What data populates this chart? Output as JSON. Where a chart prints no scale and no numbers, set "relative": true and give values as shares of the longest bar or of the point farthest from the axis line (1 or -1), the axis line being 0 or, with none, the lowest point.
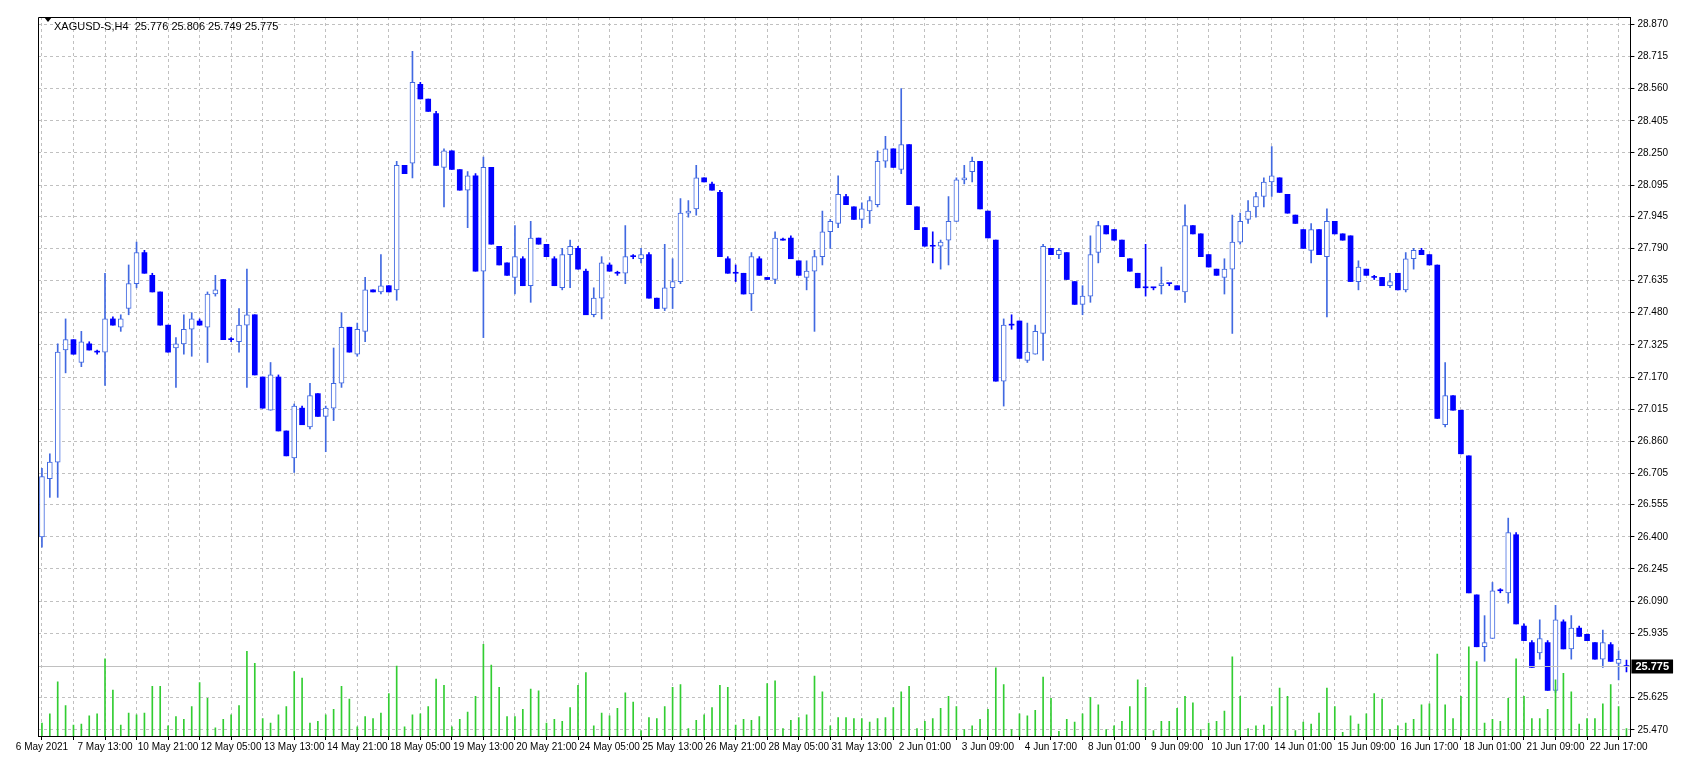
{
  "chart_data": [
    {
      "type": "candlestick",
      "title": "XAGUSD-S,H4  25.776 25.806 25.749 25.775",
      "grid": true,
      "colors": [
        "#4169e1",
        "#4169e1",
        "#4169e1",
        "#4169e1",
        "#0000ff",
        "#4169e1",
        "#0000ff",
        "#0000ff",
        "#4169e1",
        "#0000ff",
        "#4169e1",
        "#4169e1",
        "#4169e1",
        "#0000ff",
        "#0000ff",
        "#0000ff",
        "#0000ff",
        "#4169e1",
        "#4169e1",
        "#4169e1",
        "#0000ff",
        "#4169e1",
        "#4169e1",
        "#0000ff",
        "#0000ff",
        "#4169e1",
        "#4169e1",
        "#0000ff",
        "#0000ff",
        "#4169e1",
        "#0000ff",
        "#0000ff",
        "#4169e1",
        "#0000ff",
        "#4169e1",
        "#0000ff",
        "#4169e1",
        "#4169e1",
        "#4169e1",
        "#0000ff",
        "#4169e1",
        "#4169e1",
        "#0000ff",
        "#4169e1",
        "#0000ff",
        "#4169e1",
        "#0000ff",
        "#4169e1",
        "#0000ff",
        "#0000ff",
        "#0000ff",
        "#4169e1",
        "#0000ff",
        "#0000ff",
        "#4169e1",
        "#0000ff",
        "#4169e1",
        "#0000ff",
        "#0000ff",
        "#0000ff",
        "#4169e1",
        "#0000ff",
        "#4169e1",
        "#0000ff",
        "#0000ff",
        "#0000ff",
        "#4169e1",
        "#4169e1",
        "#0000ff",
        "#0000ff",
        "#4169e1",
        "#4169e1",
        "#0000ff",
        "#0000ff",
        "#4169e1",
        "#0000ff",
        "#4169e1",
        "#0000ff",
        "#0000ff",
        "#4169e1",
        "#4169e1",
        "#4169e1",
        "#4169e1",
        "#4169e1",
        "#0000ff",
        "#0000ff",
        "#0000ff",
        "#0000ff",
        "#0000ff",
        "#0000ff",
        "#4169e1",
        "#0000ff",
        "#0000ff",
        "#4169e1",
        "#0000ff",
        "#0000ff",
        "#0000ff",
        "#4169e1",
        "#4169e1",
        "#4169e1",
        "#4169e1",
        "#4169e1",
        "#0000ff",
        "#0000ff",
        "#4169e1",
        "#4169e1",
        "#4169e1",
        "#4169e1",
        "#0000ff",
        "#4169e1",
        "#0000ff",
        "#0000ff",
        "#0000ff",
        "#0000ff",
        "#4169e1",
        "#4169e1",
        "#4169e1",
        "#4169e1",
        "#4169e1",
        "#0000ff",
        "#0000ff",
        "#0000ff",
        "#4169e1",
        "#0000ff",
        "#0000ff",
        "#4169e1",
        "#4169e1",
        "#4169e1",
        "#0000ff",
        "#4169e1",
        "#0000ff",
        "#0000ff",
        "#4169e1",
        "#4169e1",
        "#4169e1",
        "#0000ff",
        "#0000ff",
        "#0000ff",
        "#0000ff",
        "#0000ff",
        "#0000ff",
        "#0000ff",
        "#4169e1",
        "#0000ff",
        "#0000ff",
        "#4169e1",
        "#0000ff",
        "#0000ff",
        "#0000ff",
        "#0000ff",
        "#4169e1",
        "#4169e1",
        "#4169e1",
        "#4169e1",
        "#4169e1",
        "#4169e1",
        "#4169e1",
        "#0000ff",
        "#0000ff",
        "#0000ff",
        "#0000ff",
        "#4169e1",
        "#0000ff",
        "#4169e1",
        "#0000ff",
        "#0000ff",
        "#0000ff",
        "#4169e1",
        "#0000ff",
        "#0000ff",
        "#0000ff",
        "#4169e1",
        "#0000ff",
        "#4169e1",
        "#4169e1",
        "#0000ff",
        "#0000ff",
        "#0000ff",
        "#4169e1",
        "#0000ff",
        "#0000ff",
        "#0000ff",
        "#0000ff",
        "#4169e1",
        "#4169e1",
        "#0000ff",
        "#4169e1",
        "#0000ff",
        "#0000ff",
        "#0000ff",
        "#4169e1",
        "#0000ff",
        "#4169e1",
        "#0000ff",
        "#4169e1",
        "#0000ff",
        "#0000ff",
        "#0000ff",
        "#4169e1",
        "#0000ff",
        "#4169e1",
        "#0000ff"
      ],
      "categories": [
        "6 May 2021",
        null,
        null,
        null,
        null,
        null,
        null,
        null,
        "7 May 13:00",
        null,
        null,
        null,
        null,
        null,
        null,
        null,
        "10 May 21:00",
        null,
        null,
        null,
        null,
        null,
        null,
        null,
        "12 May 05:00",
        null,
        null,
        null,
        null,
        null,
        null,
        null,
        "13 May 13:00",
        null,
        null,
        null,
        null,
        null,
        null,
        null,
        "14 May 21:00",
        null,
        null,
        null,
        null,
        null,
        null,
        null,
        "18 May 05:00",
        null,
        null,
        null,
        null,
        null,
        null,
        null,
        "19 May 13:00",
        null,
        null,
        null,
        null,
        null,
        null,
        null,
        "20 May 21:00",
        null,
        null,
        null,
        null,
        null,
        null,
        null,
        "24 May 05:00",
        null,
        null,
        null,
        null,
        null,
        null,
        null,
        "25 May 13:00",
        null,
        null,
        null,
        null,
        null,
        null,
        null,
        "26 May 21:00",
        null,
        null,
        null,
        null,
        null,
        null,
        null,
        "28 May 05:00",
        null,
        null,
        null,
        null,
        null,
        null,
        null,
        "31 May 13:00",
        null,
        null,
        null,
        null,
        null,
        null,
        null,
        "2 Jun 01:00",
        null,
        null,
        null,
        null,
        null,
        null,
        null,
        "3 Jun 09:00",
        null,
        null,
        null,
        null,
        null,
        null,
        null,
        "4 Jun 17:00",
        null,
        null,
        null,
        null,
        null,
        null,
        null,
        "8 Jun 01:00",
        null,
        null,
        null,
        null,
        null,
        null,
        null,
        "9 Jun 09:00",
        null,
        null,
        null,
        null,
        null,
        null,
        null,
        "10 Jun 17:00",
        null,
        null,
        null,
        null,
        null,
        null,
        null,
        "14 Jun 01:00",
        null,
        null,
        null,
        null,
        null,
        null,
        null,
        "15 Jun 09:00",
        null,
        null,
        null,
        null,
        null,
        null,
        null,
        "16 Jun 17:00",
        null,
        null,
        null,
        null,
        null,
        null,
        null,
        "18 Jun 01:00",
        null,
        null,
        null,
        null,
        null,
        null,
        null,
        "21 Jun 09:00",
        null,
        null,
        null,
        null,
        null,
        null,
        null,
        "22 Jun 17:00",
        null
      ],
      "ohlc": [
        [
          26.4,
          26.73,
          26.35,
          26.69
        ],
        [
          26.68,
          26.8,
          26.59,
          26.76
        ],
        [
          26.76,
          27.33,
          26.59,
          27.29
        ],
        [
          27.3,
          27.45,
          27.19,
          27.35
        ],
        [
          27.35,
          27.35,
          27.28,
          27.28
        ],
        [
          27.24,
          27.39,
          27.22,
          27.34
        ],
        [
          27.33,
          27.34,
          27.3,
          27.3
        ],
        [
          27.29,
          27.3,
          27.28,
          27.29
        ],
        [
          27.29,
          27.67,
          27.13,
          27.45
        ],
        [
          27.45,
          27.46,
          27.42,
          27.42
        ],
        [
          27.41,
          27.47,
          27.39,
          27.45
        ],
        [
          27.5,
          27.71,
          27.47,
          27.62
        ],
        [
          27.62,
          27.82,
          27.6,
          27.77
        ],
        [
          27.77,
          27.78,
          27.67,
          27.67
        ],
        [
          27.66,
          27.67,
          27.58,
          27.58
        ],
        [
          27.58,
          27.58,
          27.42,
          27.42
        ],
        [
          27.42,
          27.42,
          27.29,
          27.29
        ],
        [
          27.31,
          27.36,
          27.12,
          27.33
        ],
        [
          27.33,
          27.47,
          27.28,
          27.4
        ],
        [
          27.4,
          27.48,
          27.27,
          27.45
        ],
        [
          27.44,
          27.45,
          27.42,
          27.42
        ],
        [
          27.41,
          27.58,
          27.24,
          27.57
        ],
        [
          27.57,
          27.66,
          27.56,
          27.59
        ],
        [
          27.64,
          27.64,
          27.35,
          27.35
        ],
        [
          27.35,
          27.36,
          27.34,
          27.35
        ],
        [
          27.34,
          27.5,
          27.29,
          27.42
        ],
        [
          27.42,
          27.69,
          27.12,
          27.47
        ],
        [
          27.47,
          27.47,
          27.18,
          27.18
        ],
        [
          27.17,
          27.17,
          27.02,
          27.02
        ],
        [
          27.01,
          27.24,
          27.01,
          27.18
        ],
        [
          27.17,
          27.18,
          26.91,
          26.91
        ],
        [
          26.91,
          26.91,
          26.79,
          26.79
        ],
        [
          26.78,
          27.04,
          26.71,
          27.03
        ],
        [
          27.02,
          27.03,
          26.94,
          26.94
        ],
        [
          26.93,
          27.14,
          26.92,
          27.08
        ],
        [
          27.09,
          27.09,
          26.98,
          26.98
        ],
        [
          26.98,
          27.03,
          26.81,
          27.02
        ],
        [
          27.02,
          27.31,
          26.96,
          27.14
        ],
        [
          27.14,
          27.48,
          27.12,
          27.41
        ],
        [
          27.41,
          27.41,
          27.29,
          27.29
        ],
        [
          27.28,
          27.43,
          27.27,
          27.4
        ],
        [
          27.39,
          27.65,
          27.34,
          27.59
        ],
        [
          27.59,
          27.59,
          27.58,
          27.58
        ],
        [
          27.58,
          27.76,
          27.57,
          27.61
        ],
        [
          27.61,
          27.61,
          27.58,
          27.58
        ],
        [
          27.59,
          28.21,
          27.54,
          28.19
        ],
        [
          28.19,
          28.19,
          28.15,
          28.15
        ],
        [
          28.2,
          28.74,
          28.13,
          28.59
        ],
        [
          28.58,
          28.59,
          28.51,
          28.51
        ],
        [
          28.51,
          28.51,
          28.45,
          28.45
        ],
        [
          28.44,
          28.45,
          28.19,
          28.19
        ],
        [
          28.18,
          28.27,
          27.99,
          28.26
        ],
        [
          28.26,
          28.26,
          28.17,
          28.17
        ],
        [
          28.17,
          28.17,
          28.07,
          28.07
        ],
        [
          28.07,
          28.16,
          27.89,
          28.14
        ],
        [
          28.14,
          28.15,
          27.68,
          27.68
        ],
        [
          27.68,
          28.23,
          27.36,
          28.18
        ],
        [
          28.18,
          28.18,
          27.81,
          27.81
        ],
        [
          27.8,
          27.8,
          27.71,
          27.71
        ],
        [
          27.72,
          27.72,
          27.66,
          27.66
        ],
        [
          27.65,
          27.9,
          27.57,
          27.75
        ],
        [
          27.74,
          27.75,
          27.61,
          27.61
        ],
        [
          27.61,
          27.92,
          27.53,
          27.84
        ],
        [
          27.84,
          27.84,
          27.81,
          27.81
        ],
        [
          27.81,
          27.81,
          27.75,
          27.75
        ],
        [
          27.74,
          27.75,
          27.61,
          27.61
        ],
        [
          27.6,
          27.79,
          27.59,
          27.76
        ],
        [
          27.76,
          27.83,
          27.6,
          27.8
        ],
        [
          27.79,
          27.8,
          27.69,
          27.69
        ],
        [
          27.68,
          27.69,
          27.47,
          27.47
        ],
        [
          27.47,
          27.6,
          27.46,
          27.55
        ],
        [
          27.55,
          27.75,
          27.45,
          27.72
        ],
        [
          27.71,
          27.72,
          27.68,
          27.68
        ],
        [
          27.67,
          27.68,
          27.66,
          27.67
        ],
        [
          27.67,
          27.9,
          27.62,
          27.75
        ],
        [
          27.75,
          27.76,
          27.74,
          27.75
        ],
        [
          27.74,
          27.79,
          27.72,
          27.76
        ],
        [
          27.76,
          27.77,
          27.55,
          27.55
        ],
        [
          27.55,
          27.55,
          27.5,
          27.5
        ],
        [
          27.5,
          27.81,
          27.49,
          27.6
        ],
        [
          27.6,
          27.74,
          27.5,
          27.63
        ],
        [
          27.63,
          28.03,
          27.62,
          27.96
        ],
        [
          27.96,
          28.02,
          27.94,
          27.97
        ],
        [
          27.98,
          28.19,
          27.95,
          28.13
        ],
        [
          28.13,
          28.13,
          28.11,
          28.11
        ],
        [
          28.1,
          28.11,
          28.07,
          28.07
        ],
        [
          28.06,
          28.07,
          27.75,
          27.75
        ],
        [
          27.74,
          27.75,
          27.67,
          27.67
        ],
        [
          27.67,
          27.71,
          27.63,
          27.67
        ],
        [
          27.67,
          27.67,
          27.57,
          27.57
        ],
        [
          27.57,
          27.77,
          27.49,
          27.75
        ],
        [
          27.74,
          27.75,
          27.66,
          27.66
        ],
        [
          27.65,
          27.65,
          27.64,
          27.64
        ],
        [
          27.64,
          27.87,
          27.62,
          27.84
        ],
        [
          27.83,
          27.84,
          27.83,
          27.83
        ],
        [
          27.84,
          27.85,
          27.74,
          27.74
        ],
        [
          27.73,
          27.73,
          27.66,
          27.66
        ],
        [
          27.65,
          27.73,
          27.59,
          27.68
        ],
        [
          27.68,
          27.78,
          27.39,
          27.75
        ],
        [
          27.75,
          27.97,
          27.71,
          27.87
        ],
        [
          27.87,
          27.93,
          27.79,
          27.92
        ],
        [
          27.91,
          28.14,
          27.89,
          28.05
        ],
        [
          28.04,
          28.05,
          28.0,
          28.0
        ],
        [
          27.99,
          27.99,
          27.93,
          27.93
        ],
        [
          27.93,
          28.01,
          27.89,
          27.98
        ],
        [
          27.97,
          28.04,
          27.91,
          28.02
        ],
        [
          28.0,
          28.26,
          27.99,
          28.21
        ],
        [
          28.21,
          28.33,
          28.18,
          28.27
        ],
        [
          28.27,
          28.27,
          28.18,
          28.18
        ],
        [
          28.17,
          28.56,
          28.15,
          28.29
        ],
        [
          28.29,
          28.29,
          28.0,
          28.0
        ],
        [
          27.99,
          27.99,
          27.88,
          27.88
        ],
        [
          27.89,
          27.89,
          27.8,
          27.8
        ],
        [
          27.8,
          27.87,
          27.72,
          27.8
        ],
        [
          27.8,
          27.83,
          27.69,
          27.82
        ],
        [
          27.83,
          28.04,
          27.71,
          27.92
        ],
        [
          27.92,
          28.13,
          27.92,
          28.12
        ],
        [
          28.12,
          28.19,
          28.1,
          28.13
        ],
        [
          28.16,
          28.23,
          28.11,
          28.21
        ],
        [
          28.21,
          28.21,
          27.98,
          27.98
        ],
        [
          27.97,
          27.97,
          27.84,
          27.84
        ],
        [
          27.83,
          27.83,
          27.15,
          27.15
        ],
        [
          27.15,
          27.45,
          27.03,
          27.42
        ],
        [
          27.42,
          27.47,
          27.4,
          27.42
        ],
        [
          27.44,
          27.44,
          27.26,
          27.26
        ],
        [
          27.25,
          27.43,
          27.24,
          27.29
        ],
        [
          27.28,
          27.42,
          27.28,
          27.39
        ],
        [
          27.38,
          27.81,
          27.25,
          27.8
        ],
        [
          27.79,
          27.79,
          27.76,
          27.76
        ],
        [
          27.76,
          27.79,
          27.74,
          27.78
        ],
        [
          27.77,
          27.77,
          27.64,
          27.64
        ],
        [
          27.63,
          27.63,
          27.52,
          27.52
        ],
        [
          27.52,
          27.61,
          27.47,
          27.56
        ],
        [
          27.56,
          27.85,
          27.53,
          27.76
        ],
        [
          27.77,
          27.92,
          27.72,
          27.9
        ],
        [
          27.9,
          27.9,
          27.86,
          27.86
        ],
        [
          27.88,
          27.88,
          27.83,
          27.83
        ],
        [
          27.83,
          27.83,
          27.75,
          27.75
        ],
        [
          27.74,
          27.74,
          27.68,
          27.68
        ],
        [
          27.67,
          27.67,
          27.6,
          27.6
        ],
        [
          27.6,
          27.81,
          27.56,
          27.6
        ],
        [
          27.6,
          27.6,
          27.59,
          27.6
        ],
        [
          27.61,
          27.7,
          27.57,
          27.62
        ],
        [
          27.62,
          27.62,
          27.61,
          27.62
        ],
        [
          27.61,
          27.61,
          27.59,
          27.59
        ],
        [
          27.58,
          28.0,
          27.53,
          27.9
        ],
        [
          27.9,
          27.9,
          27.86,
          27.86
        ],
        [
          27.86,
          27.86,
          27.75,
          27.75
        ],
        [
          27.76,
          27.76,
          27.7,
          27.7
        ],
        [
          27.69,
          27.69,
          27.66,
          27.66
        ],
        [
          27.65,
          27.74,
          27.57,
          27.69
        ],
        [
          27.69,
          27.95,
          27.38,
          27.82
        ],
        [
          27.82,
          27.96,
          27.81,
          27.92
        ],
        [
          27.93,
          28.02,
          27.91,
          27.97
        ],
        [
          27.99,
          28.06,
          27.94,
          28.04
        ],
        [
          28.04,
          28.13,
          27.99,
          28.11
        ],
        [
          28.11,
          28.28,
          28.04,
          28.14
        ],
        [
          28.13,
          28.13,
          28.06,
          28.06
        ],
        [
          28.05,
          28.05,
          27.96,
          27.96
        ],
        [
          27.95,
          27.95,
          27.91,
          27.91
        ],
        [
          27.88,
          27.88,
          27.79,
          27.79
        ],
        [
          27.78,
          27.91,
          27.72,
          27.88
        ],
        [
          27.88,
          27.88,
          27.76,
          27.76
        ],
        [
          27.75,
          27.98,
          27.46,
          27.92
        ],
        [
          27.92,
          27.92,
          27.86,
          27.86
        ],
        [
          27.86,
          27.86,
          27.83,
          27.83
        ],
        [
          27.85,
          27.85,
          27.63,
          27.63
        ],
        [
          27.63,
          27.73,
          27.59,
          27.7
        ],
        [
          27.69,
          27.69,
          27.66,
          27.66
        ],
        [
          27.65,
          27.66,
          27.64,
          27.65
        ],
        [
          27.65,
          27.65,
          27.61,
          27.61
        ],
        [
          27.61,
          27.67,
          27.6,
          27.63
        ],
        [
          27.67,
          27.67,
          27.59,
          27.59
        ],
        [
          27.59,
          27.77,
          27.58,
          27.74
        ],
        [
          27.74,
          27.79,
          27.69,
          27.78
        ],
        [
          27.78,
          27.79,
          27.76,
          27.76
        ],
        [
          27.76,
          27.76,
          27.71,
          27.71
        ],
        [
          27.71,
          27.71,
          26.97,
          26.97
        ],
        [
          26.94,
          27.24,
          26.93,
          27.08
        ],
        [
          27.08,
          27.08,
          27.01,
          27.01
        ],
        [
          27.01,
          27.01,
          26.8,
          26.8
        ],
        [
          26.79,
          26.79,
          26.13,
          26.13
        ],
        [
          26.12,
          26.12,
          25.87,
          25.87
        ],
        [
          25.87,
          26.02,
          25.8,
          25.89
        ],
        [
          25.91,
          26.18,
          25.91,
          26.14
        ],
        [
          26.14,
          26.15,
          26.13,
          26.14
        ],
        [
          26.13,
          26.49,
          26.08,
          26.42
        ],
        [
          26.41,
          26.42,
          25.98,
          25.98
        ],
        [
          25.97,
          25.98,
          25.9,
          25.9
        ],
        [
          25.89,
          25.9,
          25.77,
          25.77
        ],
        [
          25.84,
          26.0,
          25.81,
          25.91
        ],
        [
          25.89,
          25.9,
          25.66,
          25.66
        ],
        [
          25.66,
          26.07,
          25.65,
          26.0
        ],
        [
          25.99,
          26.0,
          25.86,
          25.86
        ],
        [
          25.86,
          26.02,
          25.81,
          25.96
        ],
        [
          25.96,
          25.97,
          25.92,
          25.92
        ],
        [
          25.93,
          25.93,
          25.9,
          25.9
        ],
        [
          25.89,
          25.89,
          25.81,
          25.81
        ],
        [
          25.81,
          25.95,
          25.77,
          25.89
        ],
        [
          25.88,
          25.89,
          25.8,
          25.8
        ],
        [
          25.79,
          25.85,
          25.71,
          25.81
        ],
        [
          25.776,
          25.806,
          25.749,
          25.775
        ]
      ],
      "ylim": [
        25.44,
        28.905
      ],
      "yticks": [
        {
          "value": 28.87,
          "label": "28.870"
        },
        {
          "value": 28.715,
          "label": "28.715"
        },
        {
          "value": 28.56,
          "label": "28.560"
        },
        {
          "value": 28.405,
          "label": "28.405"
        },
        {
          "value": 28.25,
          "label": "28.250"
        },
        {
          "value": 28.095,
          "label": "28.095"
        },
        {
          "value": 27.945,
          "label": "27.945"
        },
        {
          "value": 27.79,
          "label": "27.790"
        },
        {
          "value": 27.635,
          "label": "27.635"
        },
        {
          "value": 27.48,
          "label": "27.480"
        },
        {
          "value": 27.325,
          "label": "27.325"
        },
        {
          "value": 27.17,
          "label": "27.170"
        },
        {
          "value": 27.015,
          "label": "27.015"
        },
        {
          "value": 26.86,
          "label": "26.860"
        },
        {
          "value": 26.705,
          "label": "26.705"
        },
        {
          "value": 26.555,
          "label": "26.555"
        },
        {
          "value": 26.4,
          "label": "26.400"
        },
        {
          "value": 26.245,
          "label": "26.245"
        },
        {
          "value": 26.09,
          "label": "26.090"
        },
        {
          "value": 25.935,
          "label": "25.935"
        },
        {
          "value": 25.625,
          "label": "25.625"
        },
        {
          "value": 25.47,
          "label": "25.470"
        }
      ],
      "ref_lines": [
        {
          "axis": "y",
          "value": 25.775,
          "label": "25.775",
          "color": "#c0c0c0"
        }
      ]
    },
    {
      "type": "bar",
      "relative": true,
      "tick_labels": false,
      "color": "#32cd32",
      "categories": [
        null,
        null,
        null,
        null,
        null,
        null,
        null,
        null,
        null,
        null,
        null,
        null,
        null,
        null,
        null,
        null,
        null,
        null,
        null,
        null,
        null,
        null,
        null,
        null,
        null,
        null,
        null,
        null,
        null,
        null,
        null,
        null,
        null,
        null,
        null,
        null,
        null,
        null,
        null,
        null,
        null,
        null,
        null,
        null,
        null,
        null,
        null,
        null,
        null,
        null,
        null,
        null,
        null,
        null,
        null,
        null,
        null,
        null,
        null,
        null,
        null,
        null,
        null,
        null,
        null,
        null,
        null,
        null,
        null,
        null,
        null,
        null,
        null,
        null,
        null,
        null,
        null,
        null,
        null,
        null,
        null,
        null,
        null,
        null,
        null,
        null,
        null,
        null,
        null,
        null,
        null,
        null,
        null,
        null,
        null,
        null,
        null,
        null,
        null,
        null,
        null,
        null,
        null,
        null,
        null,
        null,
        null,
        null,
        null,
        null,
        null,
        null,
        null,
        null,
        null,
        null,
        null,
        null,
        null,
        null,
        null,
        null,
        null,
        null,
        null,
        null,
        null,
        null,
        null,
        null,
        null,
        null,
        null,
        null,
        null,
        null,
        null,
        null,
        null,
        null,
        null,
        null,
        null,
        null,
        null,
        null,
        null,
        null,
        null,
        null,
        null,
        null,
        null,
        null,
        null,
        null,
        null,
        null,
        null,
        null,
        null,
        null,
        null,
        null,
        null,
        null,
        null,
        null,
        null,
        null,
        null,
        null,
        null,
        null,
        null,
        null,
        null,
        null,
        null,
        null,
        null,
        null,
        null,
        null,
        null,
        null,
        null,
        null,
        null,
        null,
        null,
        null,
        null,
        null,
        null,
        null,
        null,
        null,
        null,
        null,
        null,
        null
      ],
      "values": [
        0.14,
        0.24,
        0.59,
        0.33,
        0.12,
        0.13,
        0.22,
        0.24,
        0.84,
        0.5,
        0.12,
        0.25,
        0.23,
        0.25,
        0.54,
        0.54,
        0.11,
        0.21,
        0.18,
        0.32,
        0.58,
        0.41,
        0.09,
        0.18,
        0.23,
        0.33,
        0.92,
        0.79,
        0.19,
        0.14,
        0.23,
        0.32,
        0.7,
        0.63,
        0.14,
        0.16,
        0.23,
        0.29,
        0.54,
        0.4,
        0.1,
        0.21,
        0.19,
        0.25,
        0.46,
        0.76,
        0.1,
        0.23,
        0.24,
        0.32,
        0.62,
        0.55,
        0.1,
        0.18,
        0.26,
        0.43,
        1,
        0.77,
        0.53,
        0.21,
        0.21,
        0.29,
        0.51,
        0.49,
        0.14,
        0.18,
        0.16,
        0.31,
        0.55,
        0.69,
        0.11,
        0.25,
        0.22,
        0.3,
        0.47,
        0.37,
        0.06,
        0.2,
        0.19,
        0.32,
        0.53,
        0.56,
        0.08,
        0.17,
        0.23,
        0.31,
        0.55,
        0.53,
        0.12,
        0.18,
        0.17,
        0.21,
        0.57,
        0.6,
        0.08,
        0.17,
        0.2,
        0.23,
        0.65,
        0.48,
        0.11,
        0.2,
        0.2,
        0.19,
        0.19,
        0.15,
        0.19,
        0.2,
        0.31,
        0.48,
        0.54,
        0.08,
        0.16,
        0.19,
        0.3,
        0.43,
        0.32,
        0.07,
        0.11,
        0.18,
        0.29,
        0.74,
        0.56,
        0.07,
        0.24,
        0.22,
        0.28,
        0.64,
        0.41,
        0.05,
        0.18,
        0.15,
        0.24,
        0.42,
        0.34,
        0.07,
        0.11,
        0.16,
        0.32,
        0.61,
        0.53,
        0.06,
        0.16,
        0.16,
        0.3,
        0.43,
        0.36,
        0.07,
        0.14,
        0.16,
        0.27,
        0.86,
        0.43,
        0.08,
        0.11,
        0.12,
        0.32,
        0.52,
        0.43,
        0.06,
        0.15,
        0.13,
        0.25,
        0.52,
        0.32,
        0.04,
        0.22,
        0.13,
        0.24,
        0.46,
        0.4,
        0.07,
        0.11,
        0.14,
        0.18,
        0.34,
        0.35,
        0.89,
        0.34,
        0.19,
        0.43,
        0.97,
        0.81,
        0.14,
        0.18,
        0.16,
        0.41,
        0.84,
        0.43,
        0.19,
        0.19,
        0.29,
        0.61,
        0.68,
        0.48,
        0.13,
        0.19,
        0.19,
        0.35,
        0.56,
        0.32,
        0.08
      ]
    }
  ]
}
